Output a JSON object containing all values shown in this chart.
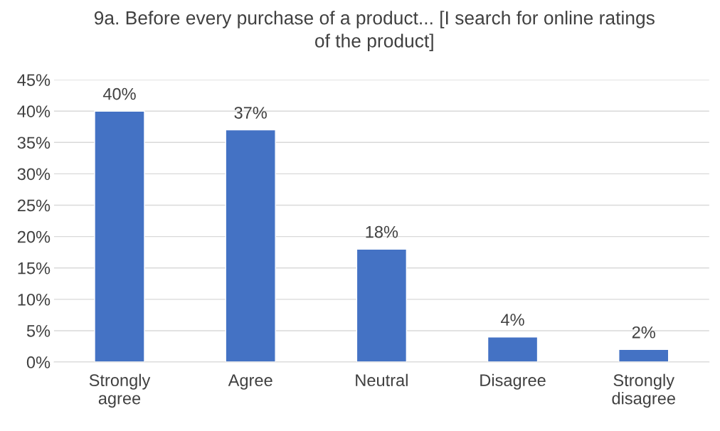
{
  "chart_data": {
    "type": "bar",
    "title": "9a. Before every purchase of a product... [I search for online ratings of the product]",
    "categories": [
      "Strongly\nagree",
      "Agree",
      "Neutral",
      "Disagree",
      "Strongly\ndisagree"
    ],
    "values": [
      40,
      37,
      18,
      4,
      2
    ],
    "value_labels": [
      "40%",
      "37%",
      "18%",
      "4%",
      "2%"
    ],
    "color": "#4472c4",
    "ylim": [
      0,
      45
    ],
    "yticks": [
      {
        "value": 0,
        "label": "0%"
      },
      {
        "value": 5,
        "label": "5%"
      },
      {
        "value": 10,
        "label": "10%"
      },
      {
        "value": 15,
        "label": "15%"
      },
      {
        "value": 20,
        "label": "20%"
      },
      {
        "value": 25,
        "label": "25%"
      },
      {
        "value": 30,
        "label": "30%"
      },
      {
        "value": 35,
        "label": "35%"
      },
      {
        "value": 40,
        "label": "40%"
      },
      {
        "value": 45,
        "label": "45%"
      }
    ],
    "grid": "y",
    "legend": false
  }
}
